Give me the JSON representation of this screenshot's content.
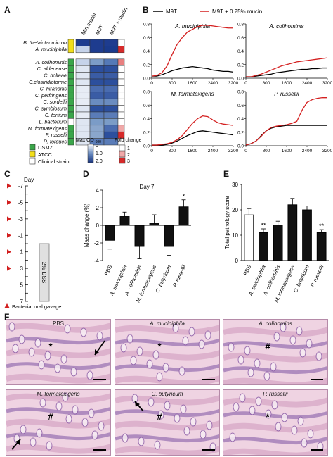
{
  "panels": {
    "A": "A",
    "B": "B",
    "C": "C",
    "D": "D",
    "E": "E",
    "F": "F"
  },
  "heatmap": {
    "col_headers": [
      "Min mucin",
      "M9T",
      "M9T + mucin"
    ],
    "strains": [
      {
        "name": "B. thetaiotaomicron",
        "source": "ATCC",
        "min": "#1e3c8f",
        "m9t": "#1e3c8f",
        "muc": "#1e3c8f",
        "fold": "#ffffff"
      },
      {
        "name": "A. muciniphila",
        "source": "ATCC",
        "min": "#c6d3ea",
        "m9t": "#1e3c8f",
        "muc": "#1a3a8c",
        "fold": "#d62a2a"
      },
      {
        "name": "A. colihominis",
        "source": "DSMZ",
        "min": "#c6d3ea",
        "m9t": "#7b9cc7",
        "muc": "#5479b7",
        "fold": "#e88080"
      },
      {
        "name": "C. aldenense",
        "source": "DSMZ",
        "min": "#dfe6f2",
        "m9t": "#2c4f9d",
        "muc": "#2c4f9d",
        "fold": "#ffffff"
      },
      {
        "name": "C. bolteae",
        "source": "DSMZ",
        "min": "#dfe6f2",
        "m9t": "#3a5ca5",
        "muc": "#3a5ca5",
        "fold": "#ffffff"
      },
      {
        "name": "C.clostridioforme",
        "source": "DSMZ",
        "min": "#dfe6f2",
        "m9t": "#2c4f9d",
        "muc": "#2c4f9d",
        "fold": "#ffffff"
      },
      {
        "name": "C. hiranonis",
        "source": "DSMZ",
        "min": "#e7ecf5",
        "m9t": "#4a6cb0",
        "muc": "#4a6cb0",
        "fold": "#ffffff"
      },
      {
        "name": "C. perfringens",
        "source": "DSMZ",
        "min": "#e7ecf5",
        "m9t": "#3a5ca5",
        "muc": "#3a5ca5",
        "fold": "#ffffff"
      },
      {
        "name": "C. sordellii",
        "source": "DSMZ",
        "min": "#e7ecf5",
        "m9t": "#6a8cc0",
        "muc": "#6a8cc0",
        "fold": "#ffffff"
      },
      {
        "name": "C. symbiosum",
        "source": "DSMZ",
        "min": "#dfe6f2",
        "m9t": "#2c4f9d",
        "muc": "#2c4f9d",
        "fold": "#ffffff"
      },
      {
        "name": "C. tertium",
        "source": "DSMZ",
        "min": "#e7ecf5",
        "m9t": "#5a7cb8",
        "muc": "#5a7cb8",
        "fold": "#ffffff"
      },
      {
        "name": "L. bacterium",
        "source": "Clinical",
        "min": "#dfe6f2",
        "m9t": "#7b9cc7",
        "muc": "#7b9cc7",
        "fold": "#ffffff"
      },
      {
        "name": "M. formatexigens",
        "source": "DSMZ",
        "min": "#dfe6f2",
        "m9t": "#8aa6cc",
        "muc": "#4a6cb0",
        "fold": "#f0a8a8"
      },
      {
        "name": "P. russelli",
        "source": "DSMZ",
        "min": "#dfe6f2",
        "m9t": "#8aa6cc",
        "muc": "#2c4f9d",
        "fold": "#d62a2a"
      },
      {
        "name": "R. torques",
        "source": "DSMZ",
        "min": "#dfe6f2",
        "m9t": "#5a7cb8",
        "muc": "#5a7cb8",
        "fold": "#ffffff"
      }
    ],
    "source_legend": [
      {
        "label": "DSMZ",
        "color": "#3aa64a"
      },
      {
        "label": "ATCC",
        "color": "#f2de1a"
      },
      {
        "label": "Clinical strain",
        "color": "#ffffff"
      }
    ],
    "od_legend_title": "Max OD",
    "od_legend_sub": "600",
    "od_ticks": [
      "0",
      "1.0",
      "2.0"
    ],
    "fold_legend_title": "Fold change",
    "fold_ticks": [
      "1",
      "2",
      "3"
    ]
  },
  "growth": {
    "legend": [
      {
        "label": "M9T",
        "color": "#000000"
      },
      {
        "label": "M9T + 0.25% mucin",
        "color": "#d42020"
      }
    ],
    "x_ticks": [
      "0",
      "800",
      "1600",
      "2400",
      "3200"
    ],
    "y_ticks": [
      "0.0",
      "0.2",
      "0.4",
      "0.6",
      "0.8"
    ],
    "xlim": [
      0,
      3200
    ],
    "ylim": [
      0,
      0.8
    ]
  },
  "timeline": {
    "title": "Day",
    "ticks": [
      "-7",
      "-5",
      "-3",
      "-1",
      "1",
      "3",
      "5",
      "7"
    ],
    "gavage_days": [
      "-7",
      "-5",
      "-3",
      "-1",
      "1",
      "3"
    ],
    "dss_label": "2% DSS",
    "legend_label": "Bacterial oral gavage"
  },
  "chart_data": [
    {
      "type": "line",
      "title": "A. muciniphila",
      "xlim": [
        0,
        3200
      ],
      "ylim": [
        0,
        0.8
      ],
      "x": [
        0,
        200,
        400,
        600,
        800,
        1000,
        1200,
        1400,
        1600,
        1800,
        2000,
        2200,
        2400,
        2600,
        2800,
        3000,
        3200
      ],
      "series": [
        {
          "name": "M9T",
          "values": [
            0.03,
            0.03,
            0.05,
            0.08,
            0.11,
            0.13,
            0.15,
            0.16,
            0.17,
            0.16,
            0.15,
            0.14,
            0.12,
            0.11,
            0.1,
            0.1,
            0.09
          ]
        },
        {
          "name": "M9T + 0.25% mucin",
          "values": [
            0.03,
            0.04,
            0.08,
            0.18,
            0.35,
            0.5,
            0.6,
            0.68,
            0.72,
            0.76,
            0.78,
            0.78,
            0.77,
            0.76,
            0.75,
            0.74,
            0.74
          ]
        }
      ]
    },
    {
      "type": "line",
      "title": "A. colihominis",
      "xlim": [
        0,
        3200
      ],
      "ylim": [
        0,
        0.8
      ],
      "x": [
        0,
        200,
        400,
        600,
        800,
        1000,
        1200,
        1400,
        1600,
        1800,
        2000,
        2200,
        2400,
        2600,
        2800,
        3000,
        3200
      ],
      "series": [
        {
          "name": "M9T",
          "values": [
            0.02,
            0.02,
            0.03,
            0.04,
            0.05,
            0.06,
            0.08,
            0.09,
            0.1,
            0.11,
            0.12,
            0.13,
            0.13,
            0.14,
            0.14,
            0.15,
            0.15
          ]
        },
        {
          "name": "M9T + 0.25% mucin",
          "values": [
            0.02,
            0.02,
            0.04,
            0.06,
            0.09,
            0.12,
            0.15,
            0.18,
            0.2,
            0.22,
            0.24,
            0.25,
            0.26,
            0.27,
            0.28,
            0.29,
            0.3
          ]
        }
      ]
    },
    {
      "type": "line",
      "title": "M. formatexigens",
      "xlim": [
        0,
        3200
      ],
      "ylim": [
        0,
        0.8
      ],
      "x": [
        0,
        200,
        400,
        600,
        800,
        1000,
        1200,
        1400,
        1600,
        1800,
        2000,
        2200,
        2400,
        2600,
        2800,
        3000,
        3200
      ],
      "series": [
        {
          "name": "M9T",
          "values": [
            0.01,
            0.01,
            0.01,
            0.02,
            0.04,
            0.07,
            0.11,
            0.15,
            0.18,
            0.21,
            0.22,
            0.21,
            0.2,
            0.19,
            0.18,
            0.17,
            0.16
          ]
        },
        {
          "name": "M9T + 0.25% mucin",
          "values": [
            0.01,
            0.01,
            0.02,
            0.03,
            0.05,
            0.09,
            0.15,
            0.24,
            0.33,
            0.4,
            0.44,
            0.43,
            0.38,
            0.34,
            0.32,
            0.31,
            0.3
          ]
        }
      ]
    },
    {
      "type": "line",
      "title": "P. russellii",
      "xlim": [
        0,
        3200
      ],
      "ylim": [
        0,
        0.8
      ],
      "x": [
        0,
        200,
        400,
        600,
        800,
        1000,
        1200,
        1400,
        1600,
        1800,
        2000,
        2200,
        2400,
        2600,
        2800,
        3000,
        3200
      ],
      "series": [
        {
          "name": "M9T",
          "values": [
            0.01,
            0.03,
            0.07,
            0.15,
            0.22,
            0.26,
            0.28,
            0.29,
            0.3,
            0.3,
            0.3,
            0.3,
            0.3,
            0.3,
            0.3,
            0.3,
            0.3
          ]
        },
        {
          "name": "M9T + 0.25% mucin",
          "values": [
            0.01,
            0.03,
            0.07,
            0.14,
            0.22,
            0.27,
            0.29,
            0.3,
            0.31,
            0.33,
            0.36,
            0.52,
            0.64,
            0.68,
            0.7,
            0.71,
            0.71
          ]
        }
      ]
    },
    {
      "type": "bar",
      "title": "Day 7",
      "ylabel": "Mass change (%)",
      "categories": [
        "PBS",
        "A. muciniphila",
        "A. colihominis",
        "M. formatexigens",
        "C. butyricum",
        "P. russellii"
      ],
      "values": [
        -1.7,
        1.0,
        -2.4,
        0.2,
        -2.4,
        2.1
      ],
      "errors": [
        1.0,
        0.5,
        1.4,
        1.0,
        1.0,
        0.8
      ],
      "significance": [
        "",
        "",
        "",
        "",
        "",
        "*"
      ],
      "ylim": [
        -4,
        4
      ],
      "y_ticks": [
        "-4",
        "-2",
        "0",
        "2",
        "4"
      ]
    },
    {
      "type": "bar",
      "ylabel": "Total pathology score",
      "categories": [
        "PBS",
        "A. muciniphila",
        "A. colihominis",
        "M. formatexigens",
        "C. butyricum",
        "P. russellii"
      ],
      "values": [
        18,
        11,
        14,
        22,
        20,
        11
      ],
      "errors": [
        2.5,
        1.5,
        1.5,
        2.5,
        1.5,
        1.2
      ],
      "fills": [
        "#ffffff",
        "#111111",
        "#111111",
        "#111111",
        "#111111",
        "#111111"
      ],
      "significance": [
        "",
        "**",
        "",
        "",
        "",
        "**"
      ],
      "ylim": [
        0,
        30
      ],
      "y_ticks": [
        "0",
        "10",
        "20",
        "30"
      ]
    }
  ],
  "histology": {
    "images": [
      {
        "caption": "PBS",
        "italic": false,
        "marks": [
          "*"
        ]
      },
      {
        "caption": "A. muciniphila",
        "italic": true,
        "marks": [
          "*"
        ]
      },
      {
        "caption": "A. colihomins",
        "italic": true,
        "marks": [
          "#"
        ]
      },
      {
        "caption": "M. formatexigens",
        "italic": true,
        "marks": [
          "#"
        ]
      },
      {
        "caption": "C. butyricum",
        "italic": true,
        "marks": [
          "#"
        ]
      },
      {
        "caption": "P. russellii",
        "italic": true,
        "marks": [
          "*"
        ]
      }
    ]
  }
}
